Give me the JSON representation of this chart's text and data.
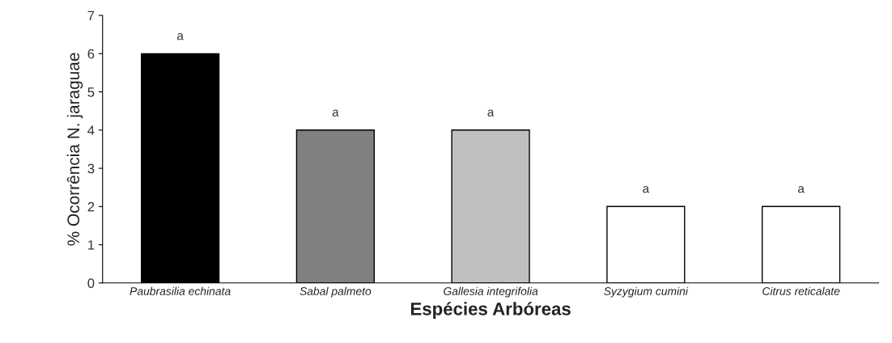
{
  "chart_data": {
    "type": "bar",
    "xlabel": "Espécies Arbóreas",
    "ylabel": "% Ocorrência N. jaraguae",
    "categories": [
      "Paubrasilia echinata",
      "Sabal palmeto",
      "Gallesia integrifolia",
      "Syzygium cumini",
      "Citrus reticalate"
    ],
    "values": [
      6,
      4,
      4,
      2,
      2
    ],
    "colors": [
      "#000000",
      "#808080",
      "#c0c0c0",
      "#ffffff",
      "#ffffff"
    ],
    "ylim": [
      0,
      7
    ],
    "yticks": [
      0,
      1,
      2,
      3,
      4,
      5,
      6,
      7
    ],
    "grid": false,
    "legend": false,
    "annotations": [
      {
        "text": "a",
        "x": "Paubrasilia echinata",
        "y": 6
      },
      {
        "text": "a",
        "x": "Sabal palmeto",
        "y": 4
      },
      {
        "text": "a",
        "x": "Gallesia integrifolia",
        "y": 4
      },
      {
        "text": "a",
        "x": "Syzygium cumini",
        "y": 2
      },
      {
        "text": "a",
        "x": "Citrus reticalate",
        "y": 2
      }
    ]
  }
}
